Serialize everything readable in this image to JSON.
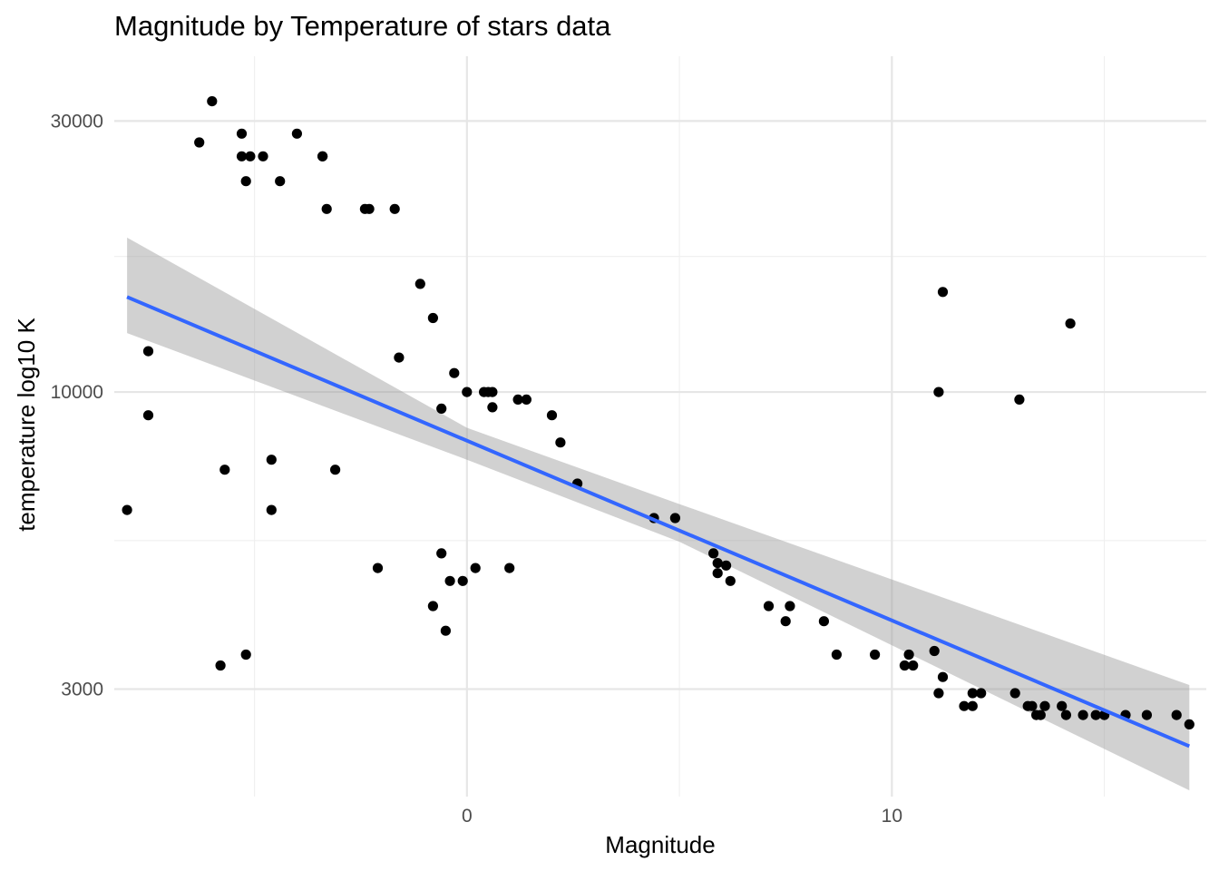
{
  "chart_data": {
    "type": "scatter",
    "title": "Magnitude by Temperature of stars data",
    "xlabel": "Magnitude",
    "ylabel": "temperature log10 K",
    "xlim": [
      -8.3,
      17.4
    ],
    "ylim": [
      1940,
      39000
    ],
    "y_scale": "log10",
    "x_ticks": [
      0,
      10
    ],
    "x_minor_ticks": [
      -5,
      5,
      15
    ],
    "y_ticks": [
      3000,
      10000,
      30000
    ],
    "y_tick_labels": [
      "3000",
      "10000",
      "30000"
    ],
    "y_minor_ticks": [
      5477,
      17321
    ],
    "grid": true,
    "legend": "none",
    "colors": {
      "points": "#000000",
      "fit_line": "#3366FF",
      "ribbon": "#999999"
    },
    "points": [
      [
        -6.0,
        32500
      ],
      [
        -6.3,
        27500
      ],
      [
        -5.3,
        28500
      ],
      [
        -4.0,
        28500
      ],
      [
        -5.3,
        26000
      ],
      [
        -5.1,
        26000
      ],
      [
        -4.8,
        26000
      ],
      [
        -3.4,
        26000
      ],
      [
        -3.4,
        26000
      ],
      [
        -5.2,
        23500
      ],
      [
        -4.4,
        23500
      ],
      [
        -3.3,
        21000
      ],
      [
        -2.4,
        21000
      ],
      [
        -2.3,
        21000
      ],
      [
        -1.7,
        21000
      ],
      [
        -1.1,
        15500
      ],
      [
        -0.8,
        13500
      ],
      [
        -1.6,
        11500
      ],
      [
        -0.3,
        10800
      ],
      [
        0.0,
        10000
      ],
      [
        0.4,
        10000
      ],
      [
        0.5,
        10000
      ],
      [
        0.6,
        10000
      ],
      [
        1.2,
        9700
      ],
      [
        1.4,
        9700
      ],
      [
        0.6,
        9400
      ],
      [
        -0.6,
        9350
      ],
      [
        2.0,
        9100
      ],
      [
        2.2,
        8150
      ],
      [
        2.6,
        6900
      ],
      [
        4.4,
        6000
      ],
      [
        4.9,
        6000
      ],
      [
        5.8,
        5200
      ],
      [
        5.9,
        5000
      ],
      [
        6.1,
        4950
      ],
      [
        5.9,
        4800
      ],
      [
        6.2,
        4650
      ],
      [
        7.1,
        4200
      ],
      [
        7.6,
        4200
      ],
      [
        7.5,
        3950
      ],
      [
        8.4,
        3950
      ],
      [
        8.7,
        3450
      ],
      [
        9.6,
        3450
      ],
      [
        10.4,
        3450
      ],
      [
        10.3,
        3300
      ],
      [
        10.5,
        3300
      ],
      [
        11.0,
        3500
      ],
      [
        11.2,
        3150
      ],
      [
        11.1,
        2950
      ],
      [
        11.7,
        2800
      ],
      [
        11.9,
        2800
      ],
      [
        11.9,
        2950
      ],
      [
        12.1,
        2950
      ],
      [
        12.9,
        2950
      ],
      [
        13.2,
        2800
      ],
      [
        13.3,
        2800
      ],
      [
        13.6,
        2800
      ],
      [
        14.0,
        2800
      ],
      [
        13.4,
        2700
      ],
      [
        13.5,
        2700
      ],
      [
        14.1,
        2700
      ],
      [
        14.5,
        2700
      ],
      [
        14.8,
        2700
      ],
      [
        15.0,
        2700
      ],
      [
        15.5,
        2700
      ],
      [
        16.0,
        2700
      ],
      [
        16.7,
        2700
      ],
      [
        17.0,
        2600
      ],
      [
        -7.5,
        11800
      ],
      [
        -7.5,
        9100
      ],
      [
        -8.0,
        6200
      ],
      [
        -5.7,
        7300
      ],
      [
        -4.6,
        7600
      ],
      [
        -3.1,
        7300
      ],
      [
        -4.6,
        6200
      ],
      [
        -2.1,
        4900
      ],
      [
        -0.6,
        5200
      ],
      [
        -0.4,
        4650
      ],
      [
        -0.1,
        4650
      ],
      [
        0.2,
        4900
      ],
      [
        1.0,
        4900
      ],
      [
        -0.8,
        4200
      ],
      [
        -0.5,
        3800
      ],
      [
        -5.8,
        3300
      ],
      [
        -5.2,
        3450
      ],
      [
        11.2,
        15000
      ],
      [
        11.1,
        10000
      ],
      [
        13.0,
        9700
      ],
      [
        14.2,
        13200
      ]
    ],
    "fit": {
      "x": [
        -8.0,
        17.0
      ],
      "y": [
        14700,
        2380
      ]
    },
    "ribbon": {
      "x": [
        -8.0,
        0.0,
        5.0,
        17.0
      ],
      "upper": [
        18700,
        8650,
        6350,
        3050
      ],
      "lower": [
        12700,
        7600,
        5450,
        1990
      ]
    }
  }
}
